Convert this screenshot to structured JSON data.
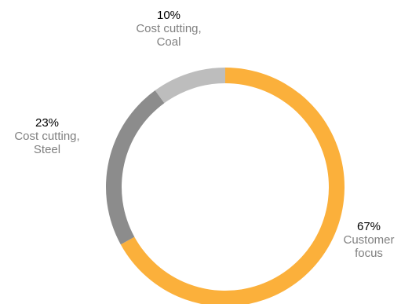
{
  "chart_data": {
    "type": "pie",
    "style": "donut",
    "slices": [
      {
        "label": "Customer focus",
        "value": 67,
        "value_label": "67%",
        "color": "#FBB03B"
      },
      {
        "label": "Cost cutting, Steel",
        "value": 23,
        "value_label": "23%",
        "color": "#8C8C8C"
      },
      {
        "label": "Cost cutting, Coal",
        "value": 10,
        "value_label": "10%",
        "color": "#BDBDBD"
      }
    ]
  },
  "labels": {
    "coal": {
      "pct": "10%",
      "line1": "Cost cutting,",
      "line2": "Coal"
    },
    "steel": {
      "pct": "23%",
      "line1": "Cost cutting,",
      "line2": "Steel"
    },
    "customer": {
      "pct": "67%",
      "line1": "Customer",
      "line2": "focus"
    }
  }
}
